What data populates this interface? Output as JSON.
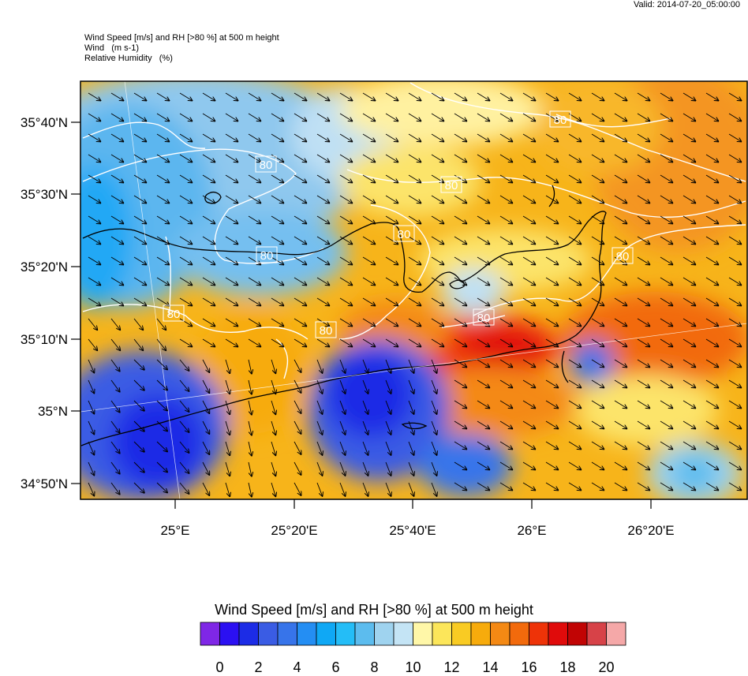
{
  "header": {
    "valid": "Valid: 2014-07-20_05:00:00",
    "line1": "Wind Speed [m/s] and RH [>80 %] at 500 m height",
    "line2": "Wind   (m s-1)",
    "line3": "Relative Humidity   (%)"
  },
  "axes": {
    "lat_labels": [
      "35°40'N",
      "35°30'N",
      "35°20'N",
      "35°10'N",
      "35°N",
      "34°50'N"
    ],
    "lon_labels": [
      "25°E",
      "25°20'E",
      "25°40'E",
      "26°E",
      "26°20'E"
    ]
  },
  "contour_labels": [
    "80",
    "80",
    "80",
    "80",
    "80",
    "80",
    "80",
    "80",
    "80"
  ],
  "colorbar": {
    "title": "Wind Speed [m/s] and RH [>80 %] at 500 m height",
    "colors": [
      "#7f27e6",
      "#2b10f2",
      "#1c2ce6",
      "#3a5ce4",
      "#3774ea",
      "#248ef3",
      "#0fa8f5",
      "#24bdf7",
      "#5cbcee",
      "#9fd3ef",
      "#c4e4f5",
      "#fff7a8",
      "#fce65a",
      "#f9cb23",
      "#f7ab0c",
      "#f48914",
      "#f26a0c",
      "#ee3308",
      "#e00b0b",
      "#c10404",
      "#d74248",
      "#f5a8a8"
    ],
    "labels": [
      "0",
      "2",
      "4",
      "6",
      "8",
      "10",
      "12",
      "14",
      "16",
      "18",
      "20"
    ]
  },
  "colors": {
    "coastline": "#000000",
    "rh_contour": "#ffffff",
    "wind_arrow": "#000000"
  }
}
